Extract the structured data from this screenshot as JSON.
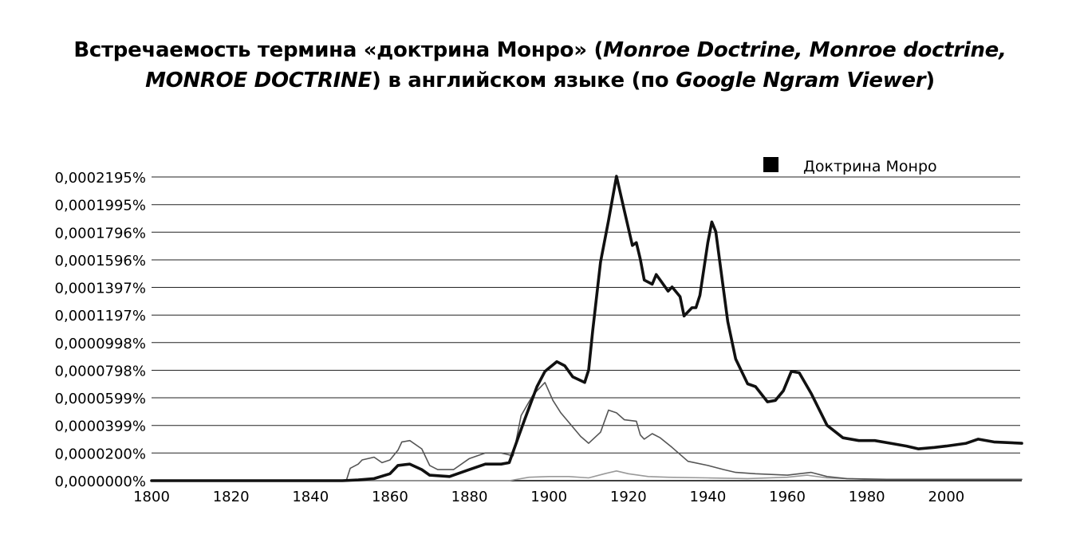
{
  "title": {
    "line1": [
      {
        "text": "Встречаемость термина «доктрина Монро» (",
        "italic": false
      },
      {
        "text": "Monroe Doctrine, Monroe doctrine,",
        "italic": true
      }
    ],
    "line2": [
      {
        "text": "MONROE DOCTRINE",
        "italic": true
      },
      {
        "text": ") в английском языке (по ",
        "italic": false
      },
      {
        "text": "Google Ngram Viewer",
        "italic": true
      },
      {
        "text": ")",
        "italic": false
      }
    ]
  },
  "chart_data": {
    "type": "line",
    "xlim": [
      1800,
      2019
    ],
    "ylim": [
      0,
      0.0002195
    ],
    "x_ticks": [
      1800,
      1820,
      1840,
      1860,
      1880,
      1900,
      1920,
      1940,
      1960,
      1980,
      2000
    ],
    "y_ticks": [
      0.0,
      2e-05,
      3.99e-05,
      5.99e-05,
      7.98e-05,
      9.98e-05,
      0.0001197,
      0.0001397,
      0.0001596,
      0.0001796,
      0.0001995,
      0.0002195
    ],
    "y_tick_labels": [
      "0,0000000%",
      "0,0000200%",
      "0,0000399%",
      "0,0000599%",
      "0,0000798%",
      "0,0000998%",
      "0,0001197%",
      "0,0001397%",
      "0,0001596%",
      "0,0001796%",
      "0,0001995%",
      "0,0002195%"
    ],
    "grid": "horizontal",
    "legend": {
      "position": "top-right",
      "entries": [
        "Доктрина Монро"
      ]
    },
    "series": [
      {
        "name": "Доктрина Монро",
        "color": "#111111",
        "x": [
          1800,
          1848,
          1852,
          1856,
          1860,
          1862,
          1865,
          1868,
          1870,
          1875,
          1880,
          1884,
          1888,
          1890,
          1892,
          1894,
          1897,
          1899,
          1902,
          1904,
          1906,
          1909,
          1910,
          1911,
          1913,
          1915,
          1917,
          1919,
          1921,
          1922,
          1923,
          1924,
          1926,
          1927,
          1928,
          1930,
          1931,
          1933,
          1934,
          1936,
          1937,
          1938,
          1940,
          1941,
          1942,
          1945,
          1947,
          1950,
          1952,
          1955,
          1957,
          1959,
          1961,
          1963,
          1966,
          1970,
          1974,
          1978,
          1982,
          1986,
          1990,
          1993,
          1997,
          2000,
          2005,
          2008,
          2012,
          2019
        ],
        "y": [
          0.0,
          0.0,
          5e-07,
          1.5e-06,
          5e-06,
          1.1e-05,
          1.2e-05,
          8e-06,
          4e-06,
          3e-06,
          8e-06,
          1.2e-05,
          1.2e-05,
          1.3e-05,
          2.9e-05,
          4.5e-05,
          6.8e-05,
          7.9e-05,
          8.6e-05,
          8.3e-05,
          7.5e-05,
          7.1e-05,
          8e-05,
          0.000108,
          0.000158,
          0.000188,
          0.00022,
          0.000195,
          0.00017,
          0.000172,
          0.00016,
          0.000145,
          0.000142,
          0.000149,
          0.000145,
          0.000137,
          0.00014,
          0.000133,
          0.000119,
          0.000125,
          0.000125,
          0.000134,
          0.000172,
          0.000187,
          0.00018,
          0.000115,
          8.8e-05,
          7e-05,
          6.8e-05,
          5.7e-05,
          5.8e-05,
          6.5e-05,
          7.9e-05,
          7.8e-05,
          6.3e-05,
          4e-05,
          3.1e-05,
          2.9e-05,
          2.9e-05,
          2.7e-05,
          2.5e-05,
          2.3e-05,
          2.4e-05,
          2.5e-05,
          2.7e-05,
          3e-05,
          2.8e-05,
          2.7e-05
        ]
      },
      {
        "name": "",
        "color": "#555555",
        "x": [
          1800,
          1849,
          1850,
          1852,
          1853,
          1856,
          1858,
          1860,
          1862,
          1863,
          1865,
          1868,
          1870,
          1872,
          1876,
          1880,
          1884,
          1888,
          1891,
          1893,
          1896,
          1899,
          1901,
          1903,
          1908,
          1910,
          1913,
          1915,
          1917,
          1919,
          1922,
          1923,
          1924,
          1926,
          1928,
          1931,
          1935,
          1940,
          1944,
          1947,
          1952,
          1960,
          1966,
          1970,
          1975,
          1985,
          2000,
          2019
        ],
        "y": [
          0.0,
          0.0,
          9e-06,
          1.2e-05,
          1.5e-05,
          1.7e-05,
          1.3e-05,
          1.5e-05,
          2.2e-05,
          2.8e-05,
          2.9e-05,
          2.3e-05,
          1.1e-05,
          8e-06,
          8e-06,
          1.6e-05,
          2e-05,
          2e-05,
          1.8e-05,
          4.7e-05,
          6.2e-05,
          7.1e-05,
          5.8e-05,
          4.9e-05,
          3.2e-05,
          2.7e-05,
          3.5e-05,
          5.1e-05,
          4.9e-05,
          4.4e-05,
          4.3e-05,
          3.3e-05,
          3e-05,
          3.4e-05,
          3.1e-05,
          2.4e-05,
          1.4e-05,
          1.1e-05,
          8e-06,
          6e-06,
          5e-06,
          4e-06,
          6e-06,
          3e-06,
          1.5e-06,
          1e-06,
          1e-06,
          1e-06
        ]
      },
      {
        "name": "",
        "color": "#999999",
        "x": [
          1800,
          1890,
          1895,
          1900,
          1905,
          1910,
          1914,
          1917,
          1920,
          1925,
          1930,
          1940,
          1950,
          1960,
          1965,
          1970,
          1980,
          2000,
          2019
        ],
        "y": [
          0.0,
          0.0,
          2.5e-06,
          3e-06,
          3e-06,
          2e-06,
          5e-06,
          7e-06,
          5e-06,
          3e-06,
          2.5e-06,
          2e-06,
          1.5e-06,
          2.5e-06,
          4e-06,
          2e-06,
          1e-06,
          1e-06,
          1e-06
        ]
      }
    ]
  }
}
